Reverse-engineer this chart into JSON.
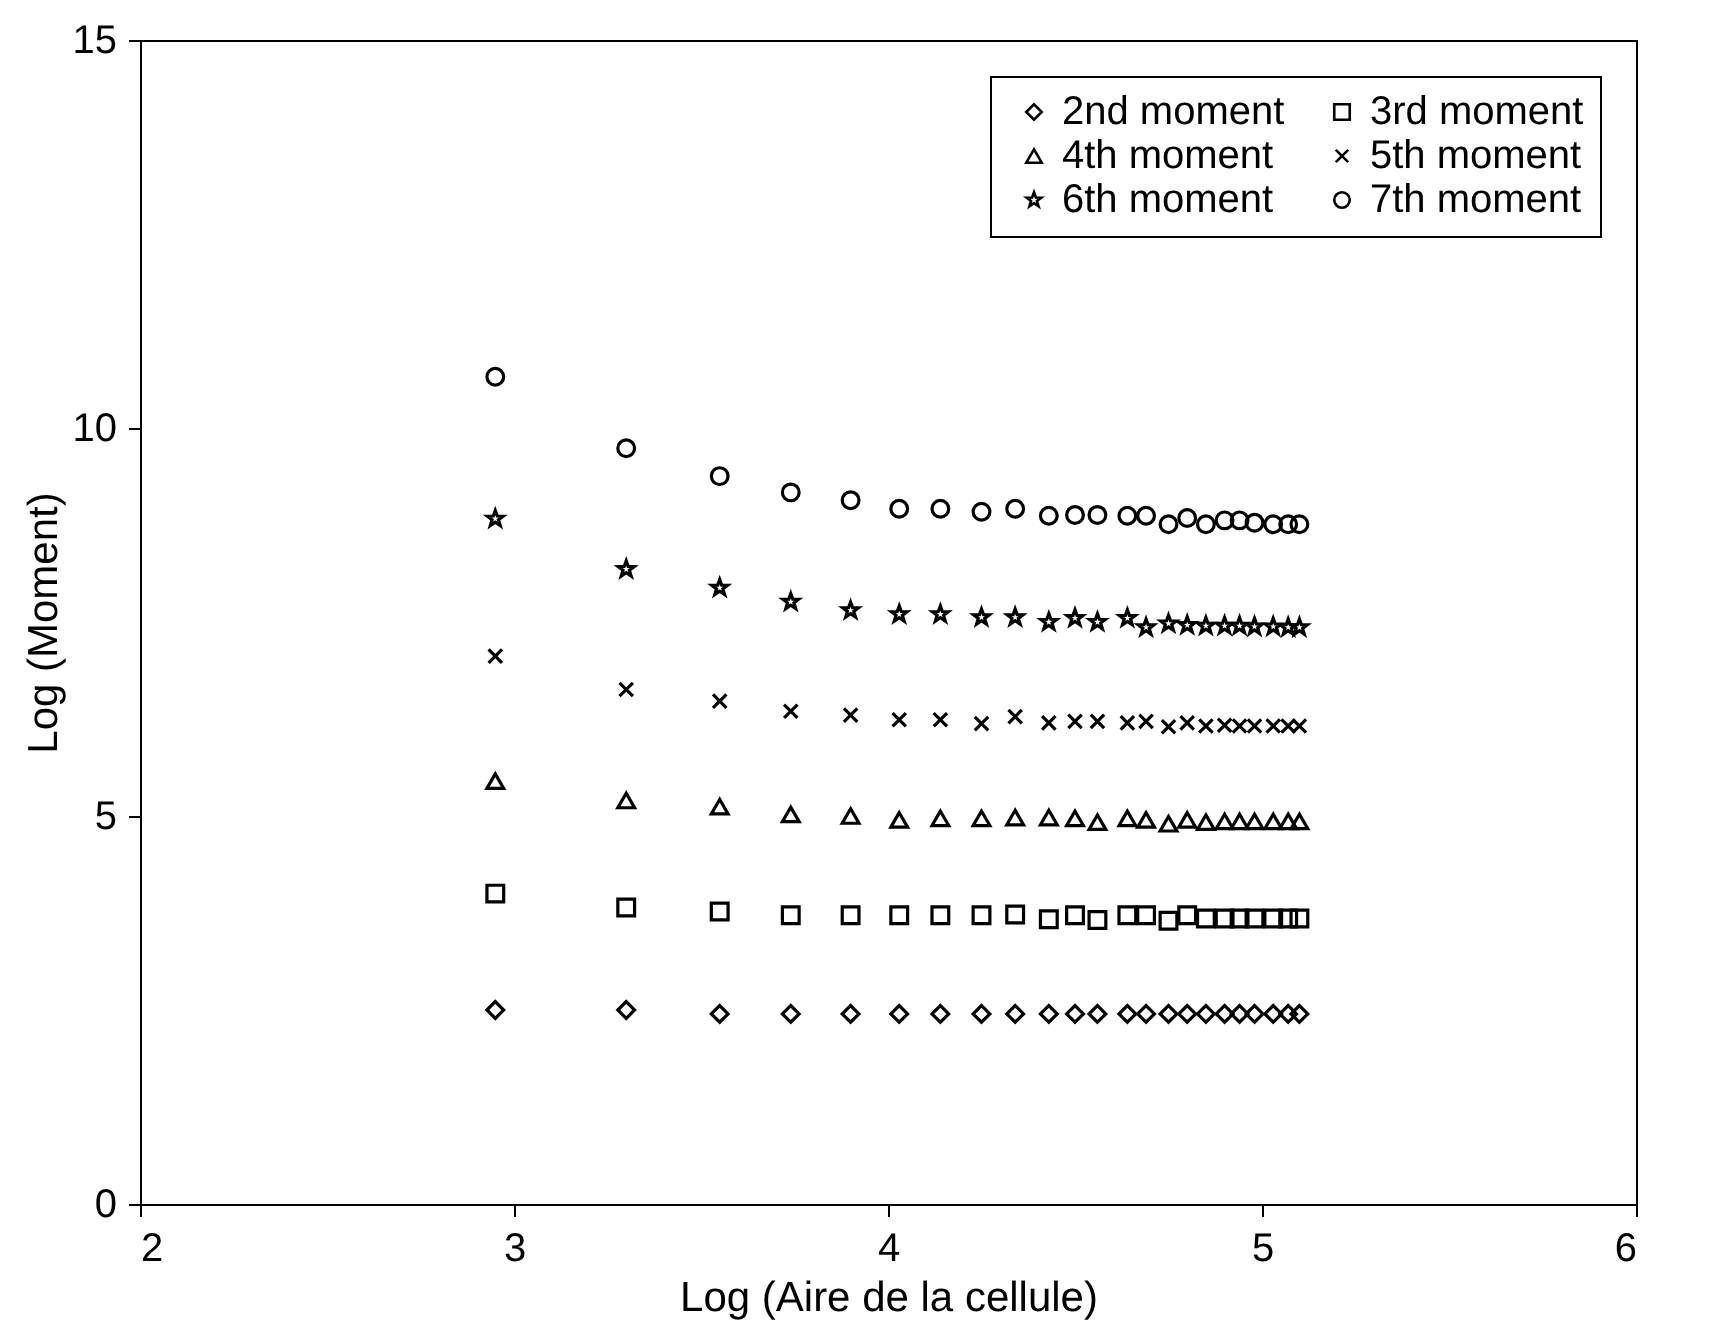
{
  "chart_data": {
    "type": "scatter",
    "xlabel": "Log (Aire de la cellule)",
    "ylabel": "Log (Moment)",
    "xlim": [
      2,
      6
    ],
    "ylim": [
      0,
      15
    ],
    "xticks": [
      2,
      3,
      4,
      5,
      6
    ],
    "yticks": [
      0,
      5,
      10,
      15
    ],
    "grid": false,
    "legend": "top right",
    "x": [
      2.95,
      3.3,
      3.55,
      3.74,
      3.9,
      4.03,
      4.14,
      4.25,
      4.34,
      4.43,
      4.5,
      4.56,
      4.64,
      4.69,
      4.75,
      4.8,
      4.85,
      4.9,
      4.94,
      4.98,
      5.03,
      5.07,
      5.1
    ],
    "series": [
      {
        "name": "2nd moment",
        "color": "#000000",
        "marker": "diamond",
        "values": [
          2.5,
          2.5,
          2.45,
          2.45,
          2.45,
          2.45,
          2.45,
          2.45,
          2.45,
          2.45,
          2.45,
          2.45,
          2.45,
          2.45,
          2.45,
          2.45,
          2.45,
          2.45,
          2.45,
          2.45,
          2.45,
          2.45,
          2.45
        ]
      },
      {
        "name": "3rd moment",
        "color": "#000000",
        "marker": "square",
        "values": [
          4.0,
          3.82,
          3.77,
          3.72,
          3.72,
          3.72,
          3.72,
          3.72,
          3.73,
          3.67,
          3.72,
          3.66,
          3.72,
          3.72,
          3.65,
          3.72,
          3.68,
          3.68,
          3.68,
          3.68,
          3.68,
          3.68,
          3.68
        ]
      },
      {
        "name": "4th moment",
        "color": "#000000",
        "marker": "triangle",
        "values": [
          5.45,
          5.2,
          5.12,
          5.02,
          5.0,
          4.95,
          4.97,
          4.97,
          4.98,
          4.98,
          4.97,
          4.92,
          4.97,
          4.95,
          4.9,
          4.95,
          4.92,
          4.93,
          4.93,
          4.93,
          4.93,
          4.93,
          4.93
        ]
      },
      {
        "name": "5th moment",
        "color": "#000000",
        "marker": "cross",
        "values": [
          7.06,
          6.63,
          6.48,
          6.35,
          6.3,
          6.24,
          6.24,
          6.19,
          6.28,
          6.2,
          6.22,
          6.22,
          6.2,
          6.22,
          6.15,
          6.2,
          6.16,
          6.17,
          6.16,
          6.16,
          6.16,
          6.16,
          6.16
        ]
      },
      {
        "name": "6th moment",
        "color": "#000000",
        "marker": "star",
        "values": [
          8.83,
          8.18,
          7.94,
          7.76,
          7.65,
          7.6,
          7.6,
          7.56,
          7.56,
          7.5,
          7.55,
          7.5,
          7.55,
          7.43,
          7.48,
          7.46,
          7.45,
          7.45,
          7.45,
          7.44,
          7.44,
          7.43,
          7.43
        ]
      },
      {
        "name": "7th moment",
        "color": "#000000",
        "marker": "circle",
        "values": [
          10.66,
          9.74,
          9.38,
          9.17,
          9.07,
          8.96,
          8.96,
          8.92,
          8.96,
          8.87,
          8.88,
          8.88,
          8.87,
          8.87,
          8.76,
          8.84,
          8.76,
          8.81,
          8.81,
          8.78,
          8.76,
          8.76,
          8.76
        ]
      }
    ]
  }
}
